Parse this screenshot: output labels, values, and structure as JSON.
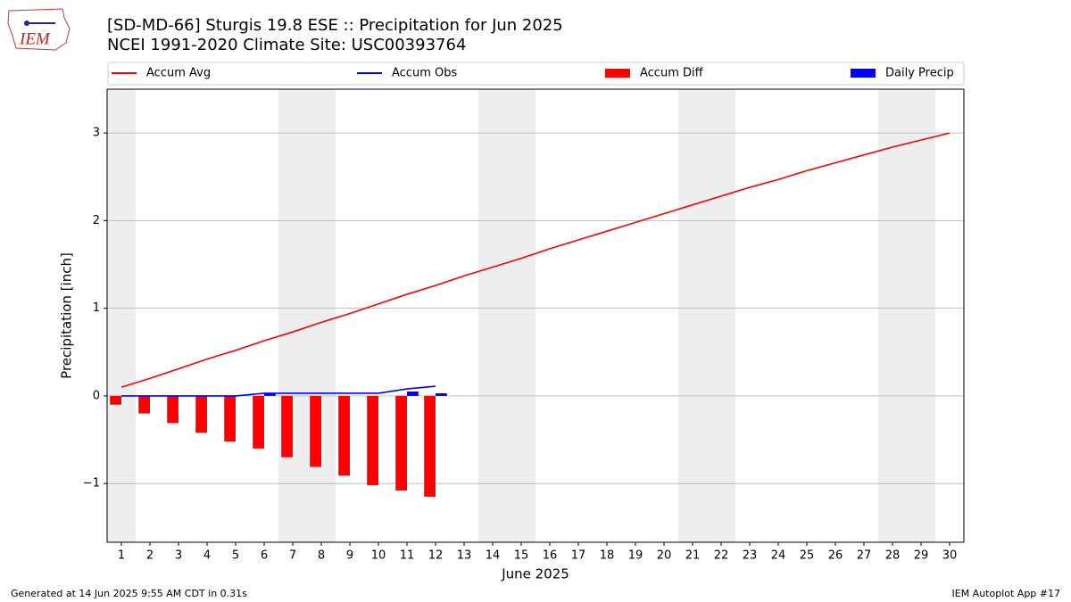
{
  "logo": "IEM",
  "footer_left": "Generated at 14 Jun 2025 9:55 AM CDT in 0.31s",
  "footer_right": "IEM Autoplot App #17",
  "chart_data": {
    "type": "combo",
    "title": "[SD-MD-66] Sturgis 19.8 ESE :: Precipitation for Jun 2025",
    "subtitle": "NCEI 1991-2020 Climate Site: USC00393764",
    "x_label": "June 2025",
    "y_label": "Precipitation [inch]",
    "x": [
      1,
      2,
      3,
      4,
      5,
      6,
      7,
      8,
      9,
      10,
      11,
      12,
      13,
      14,
      15,
      16,
      17,
      18,
      19,
      20,
      21,
      22,
      23,
      24,
      25,
      26,
      27,
      28,
      29,
      30
    ],
    "xlim": [
      0.5,
      30.5
    ],
    "xticks": [
      1,
      2,
      3,
      4,
      5,
      6,
      7,
      8,
      9,
      10,
      11,
      12,
      13,
      14,
      15,
      16,
      17,
      18,
      19,
      20,
      21,
      22,
      23,
      24,
      25,
      26,
      27,
      28,
      29,
      30
    ],
    "ylim": [
      -1.67,
      3.5
    ],
    "yticks": [
      {
        "value": -1,
        "label": "−1"
      },
      0,
      1,
      2,
      3
    ],
    "grid": true,
    "weekend_days": [
      1,
      7,
      8,
      14,
      15,
      21,
      22,
      28,
      29
    ],
    "weekend_color": "#eeeeee",
    "series": [
      {
        "name": "Accum Avg",
        "type": "line",
        "color": "#ff0000",
        "values": [
          0.1,
          0.2,
          0.31,
          0.42,
          0.52,
          0.63,
          0.73,
          0.84,
          0.94,
          1.05,
          1.16,
          1.26,
          1.37,
          1.47,
          1.57,
          1.68,
          1.78,
          1.88,
          1.98,
          2.08,
          2.18,
          2.28,
          2.38,
          2.47,
          2.57,
          2.66,
          2.75,
          2.84,
          2.92,
          3.0
        ]
      },
      {
        "name": "Accum Obs",
        "type": "line",
        "color": "#0000ff",
        "values": [
          0,
          0,
          0,
          0,
          0,
          0.03,
          0.03,
          0.03,
          0.03,
          0.03,
          0.08,
          0.11,
          null,
          null,
          null,
          null,
          null,
          null,
          null,
          null,
          null,
          null,
          null,
          null,
          null,
          null,
          null,
          null,
          null,
          null
        ]
      },
      {
        "name": "Accum Diff",
        "type": "bar",
        "side": "left",
        "color": "#ff0000",
        "values": [
          -0.1,
          -0.2,
          -0.31,
          -0.42,
          -0.52,
          -0.6,
          -0.7,
          -0.81,
          -0.91,
          -1.02,
          -1.08,
          -1.15,
          null,
          null,
          null,
          null,
          null,
          null,
          null,
          null,
          null,
          null,
          null,
          null,
          null,
          null,
          null,
          null,
          null,
          null
        ]
      },
      {
        "name": "Daily Precip",
        "type": "bar",
        "side": "right",
        "color": "#0000ff",
        "values": [
          0,
          0,
          0,
          0,
          0,
          0.03,
          0,
          0,
          0,
          0,
          0.05,
          0.03,
          null,
          null,
          null,
          null,
          null,
          null,
          null,
          null,
          null,
          null,
          null,
          null,
          null,
          null,
          null,
          null,
          null,
          null
        ]
      }
    ]
  }
}
